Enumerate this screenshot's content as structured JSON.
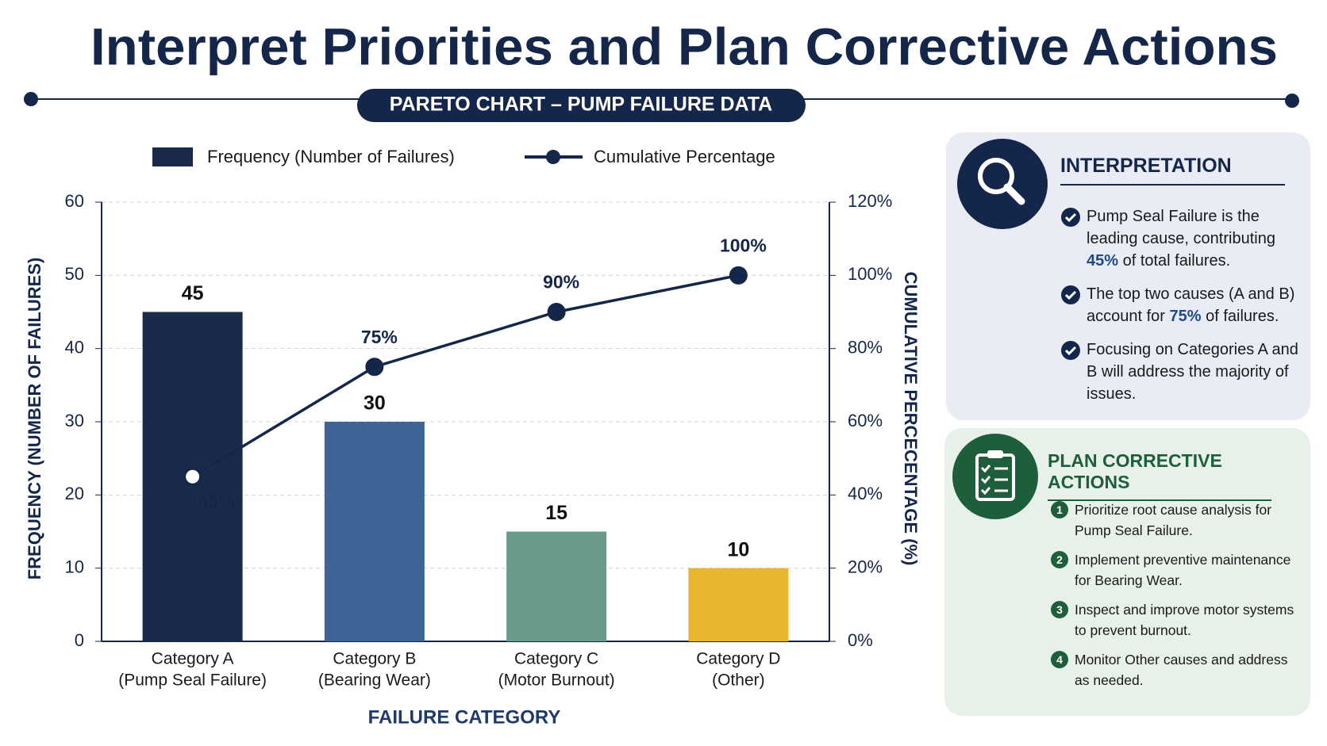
{
  "chart_data": {
    "type": "pareto",
    "title": "Interpret Priorities and Plan Corrective Actions",
    "subtitle": "PARETO CHART – PUMP FAILURE DATA",
    "categories": [
      [
        "Category A",
        "(Pump Seal Failure)"
      ],
      [
        "Category B",
        "(Bearing Wear)"
      ],
      [
        "Category C",
        "(Motor Burnout)"
      ],
      [
        "Category D",
        "(Other)"
      ]
    ],
    "series": [
      {
        "name": "Frequency (Number of Failures)",
        "colors": [
          "#1b2a4a",
          "#3d6494",
          "#6a9a8c",
          "#e8b52e"
        ],
        "values": [
          45,
          30,
          15,
          10
        ]
      },
      {
        "name": "Cumulative Percentage",
        "color": "#14264a",
        "axis": "y2",
        "values": [
          45,
          75,
          90,
          100
        ],
        "value_labels": [
          "45%",
          "75%",
          "90%",
          "100%"
        ]
      }
    ],
    "ylim": [
      0,
      60
    ],
    "yticks": [
      0,
      10,
      20,
      30,
      40,
      50,
      60
    ],
    "y2lim": [
      0,
      120
    ],
    "y2ticks": [
      {
        "value": 0,
        "label": "0%"
      },
      {
        "value": 20,
        "label": "20%"
      },
      {
        "value": 40,
        "label": "40%"
      },
      {
        "value": 60,
        "label": "60%"
      },
      {
        "value": 80,
        "label": "80%"
      },
      {
        "value": 100,
        "label": "100%"
      },
      {
        "value": 120,
        "label": "120%"
      }
    ],
    "xlabel": "FAILURE CATEGORY",
    "ylabel": "FREQUENCY (NUMBER OF FAILURES)",
    "y2label": "CUMULATIVE PERCECENTAGE (%)",
    "grid": true,
    "legend": "top"
  },
  "interpretation": {
    "title": "INTERPRETATION",
    "items": [
      {
        "before": "Pump Seal Failure is the leading cause, contributing ",
        "highlight": "45%",
        "after": " of total failures."
      },
      {
        "before": "The top two causes (A and B) account for ",
        "highlight": "75%",
        "after": " of failures."
      },
      {
        "text": "Focusing on Categories A and B will address the majority of issues."
      }
    ]
  },
  "corrective_actions": {
    "title": "PLAN CORRECTIVE ACTIONS",
    "items": [
      {
        "number": 1,
        "text": "Prioritize root cause analysis for Pump Seal Failure."
      },
      {
        "number": 2,
        "text": "Implement preventive maintenance for Bearing Wear."
      },
      {
        "number": 3,
        "text": "Inspect and improve motor systems to prevent burnout."
      },
      {
        "number": 4,
        "text": "Monitor Other causes and address as needed."
      }
    ]
  }
}
